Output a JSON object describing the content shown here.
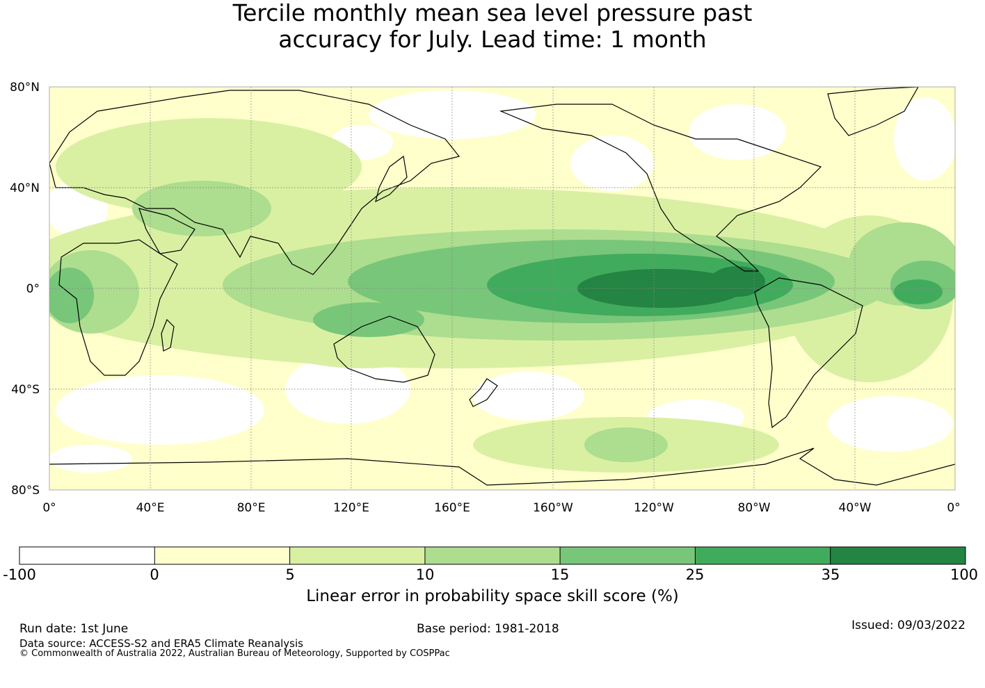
{
  "title_line1": "Tercile monthly mean sea level pressure past",
  "title_line2": "accuracy for July. Lead time: 1 month",
  "map": {
    "lat_labels": [
      "80°N",
      "40°N",
      "0°",
      "40°S",
      "80°S"
    ],
    "lon_labels": [
      "0°",
      "40°E",
      "80°E",
      "120°E",
      "160°E",
      "160°W",
      "120°W",
      "80°W",
      "40°W",
      "0°"
    ]
  },
  "colorbar": {
    "bounds": [
      "-100",
      "0",
      "5",
      "10",
      "15",
      "25",
      "35",
      "100"
    ],
    "colors": [
      "#ffffff",
      "#ffffcc",
      "#d9f0a3",
      "#addd8e",
      "#78c679",
      "#41ab5d",
      "#238443"
    ],
    "label": "Linear error in probability space skill score (%)"
  },
  "footer": {
    "run_date": "Run date: 1st June",
    "base_period": "Base period: 1981-2018",
    "issued": "Issued: 09/03/2022",
    "data_source": "Data source: ACCESS-S2 and ERA5 Climate Reanalysis",
    "copyright": "© Commonwealth of Australia 2022, Australian Bureau of Meteorology, Supported by COSPPac"
  }
}
